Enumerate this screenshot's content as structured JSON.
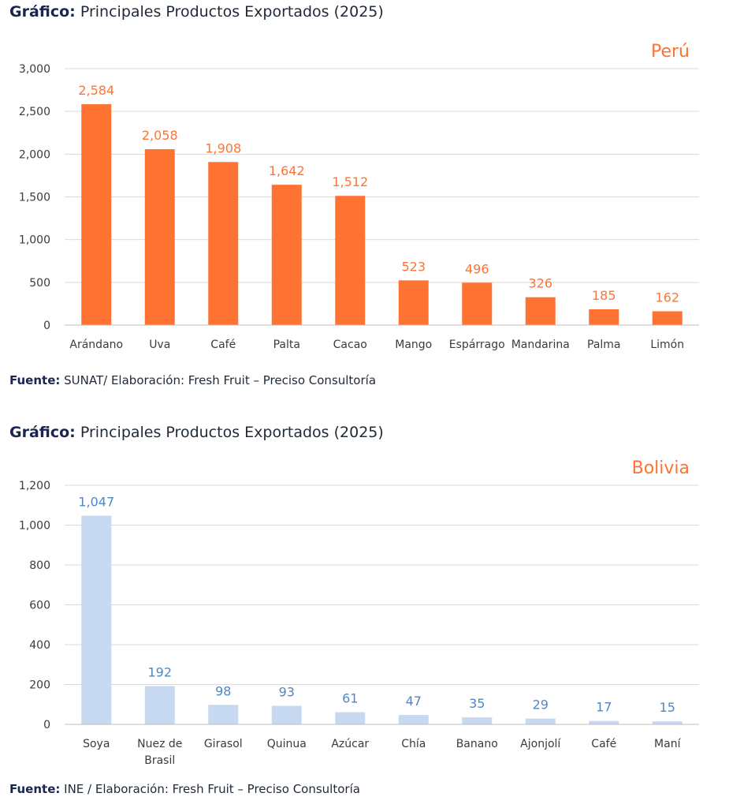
{
  "colors": {
    "peru": "#ff7332",
    "bolivia": "#c6d9f1",
    "bolivia_label": "#4f87c5",
    "grid": "#d9d9d9",
    "heading": "#1a2650"
  },
  "section1": {
    "heading_bold": "Gráfico:",
    "heading_text": "Principales Productos Exportados (2025)",
    "source_bold": "Fuente:",
    "source_text": "SUNAT/ Elaboración: Fresh Fruit – Preciso Consultoría"
  },
  "section2": {
    "heading_bold": "Gráfico:",
    "heading_text": "Principales Productos Exportados (2025)",
    "source_bold": "Fuente:",
    "source_text": "INE / Elaboración: Fresh Fruit – Preciso Consultoría"
  },
  "chart_data": [
    {
      "type": "bar",
      "country_label": "Perú",
      "categories": [
        "Arándano",
        "Uva",
        "Café",
        "Palta",
        "Cacao",
        "Mango",
        "Espárrago",
        "Mandarina",
        "Palma",
        "Limón"
      ],
      "values": [
        2584,
        2058,
        1908,
        1642,
        1512,
        523,
        496,
        326,
        185,
        162
      ],
      "value_labels": [
        "2,584",
        "2,058",
        "1,908",
        "1,642",
        "1,512",
        "523",
        "496",
        "326",
        "185",
        "162"
      ],
      "ylim": [
        0,
        3000
      ],
      "yticks": [
        "0",
        "500",
        "1,000",
        "1,500",
        "2,000",
        "2,500",
        "3,000"
      ],
      "grid": true,
      "color": "#ff7332",
      "label_color": "#ff7332"
    },
    {
      "type": "bar",
      "country_label": "Bolivia",
      "categories": [
        "Soya",
        "Nuez de Brasil",
        "Girasol",
        "Quinua",
        "Azúcar",
        "Chía",
        "Banano",
        "Ajonjolí",
        "Café",
        "Maní"
      ],
      "values": [
        1047,
        192,
        98,
        93,
        61,
        47,
        35,
        29,
        17,
        15
      ],
      "value_labels": [
        "1,047",
        "192",
        "98",
        "93",
        "61",
        "47",
        "35",
        "29",
        "17",
        "15"
      ],
      "ylim": [
        0,
        1200
      ],
      "yticks": [
        "0",
        "200",
        "400",
        "600",
        "800",
        "1,000",
        "1,200"
      ],
      "grid": true,
      "color": "#c6d9f1",
      "label_color": "#4f87c5"
    }
  ]
}
